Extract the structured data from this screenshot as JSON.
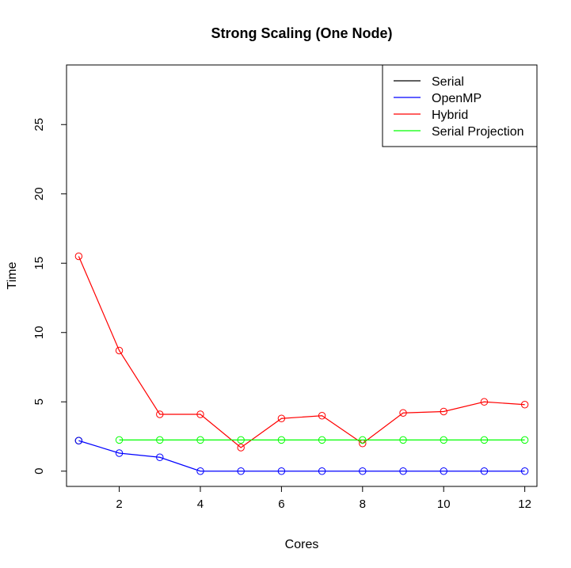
{
  "chart_data": {
    "type": "line",
    "title": "Strong Scaling (One Node)",
    "xlabel": "Cores",
    "ylabel": "Time",
    "xlim": [
      0.7,
      12.3
    ],
    "ylim": [
      -1.1,
      29.3
    ],
    "x_ticks": [
      2,
      4,
      6,
      8,
      10,
      12
    ],
    "y_ticks": [
      0,
      5,
      10,
      15,
      20,
      25
    ],
    "grid": false,
    "legend_position": "top-right",
    "series": [
      {
        "name": "Serial",
        "color": "#000000",
        "x": [
          1
        ],
        "y": [
          2.2
        ]
      },
      {
        "name": "OpenMP",
        "color": "#0000ff",
        "x": [
          1,
          2,
          3,
          4,
          5,
          6,
          7,
          8,
          9,
          10,
          11,
          12
        ],
        "y": [
          2.2,
          1.3,
          1.0,
          0.0,
          0.0,
          0.0,
          0.0,
          0.0,
          0.0,
          0.0,
          0.0,
          0.0
        ]
      },
      {
        "name": "Hybrid",
        "color": "#ff0000",
        "x": [
          1,
          2,
          3,
          4,
          5,
          6,
          7,
          8,
          9,
          10,
          11,
          12
        ],
        "y": [
          15.5,
          8.7,
          4.1,
          4.1,
          1.7,
          3.8,
          4.0,
          2.0,
          4.2,
          4.3,
          5.0,
          4.8
        ]
      },
      {
        "name": "Serial Projection",
        "color": "#00ff00",
        "x": [
          2,
          3,
          4,
          5,
          6,
          7,
          8,
          9,
          10,
          11,
          12
        ],
        "y": [
          2.25,
          2.25,
          2.25,
          2.25,
          2.25,
          2.25,
          2.25,
          2.25,
          2.25,
          2.25,
          2.25
        ]
      }
    ]
  }
}
